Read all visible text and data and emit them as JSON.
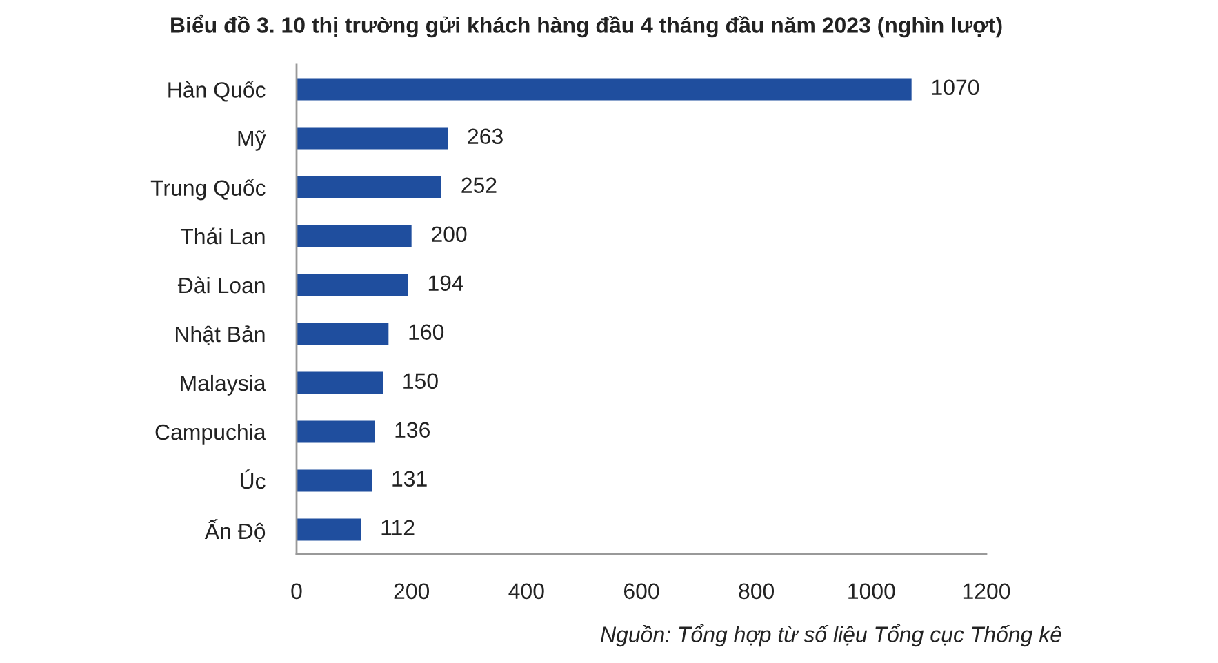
{
  "chart_data": {
    "type": "bar",
    "orientation": "horizontal",
    "title": "Biểu đồ 3. 10 thị trường gửi khách hàng đầu 4 tháng đầu năm 2023 (nghìn lượt)",
    "categories": [
      "Hàn Quốc",
      "Mỹ",
      "Trung Quốc",
      "Thái Lan",
      "Đài Loan",
      "Nhật Bản",
      "Malaysia",
      "Campuchia",
      "Úc",
      "Ấn Độ"
    ],
    "values": [
      1070,
      263,
      252,
      200,
      194,
      160,
      150,
      136,
      131,
      112
    ],
    "color": "#1f4e9e",
    "xlim": [
      0,
      1200
    ],
    "xticks": [
      0,
      200,
      400,
      600,
      800,
      1000,
      1200
    ],
    "data_labels": true,
    "grid": false,
    "legend": false,
    "annotations": [
      "Nguồn: Tổng hợp từ số liệu Tổng cục Thống kê"
    ]
  }
}
